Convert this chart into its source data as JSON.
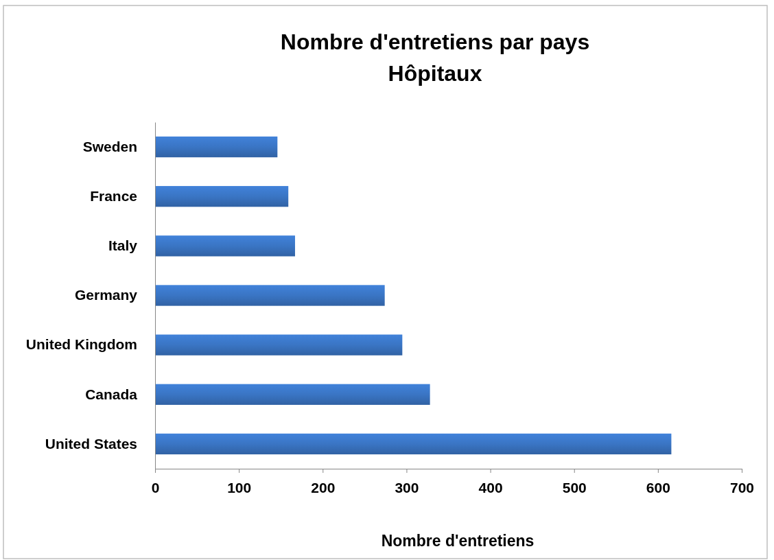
{
  "chart_data": {
    "type": "bar",
    "orientation": "horizontal",
    "title": "Nombre d'entretiens par pays",
    "subtitle": "Hôpitaux",
    "xlabel": "Nombre d'entretiens",
    "categories": [
      "Sweden",
      "France",
      "Italy",
      "Germany",
      "United Kingdom",
      "Canada",
      "United States"
    ],
    "values": [
      146,
      159,
      167,
      274,
      295,
      328,
      616
    ],
    "color": "#3a75c4",
    "xlim": [
      0,
      700
    ],
    "xticks": [
      0,
      100,
      200,
      300,
      400,
      500,
      600,
      700
    ],
    "grid": false
  }
}
